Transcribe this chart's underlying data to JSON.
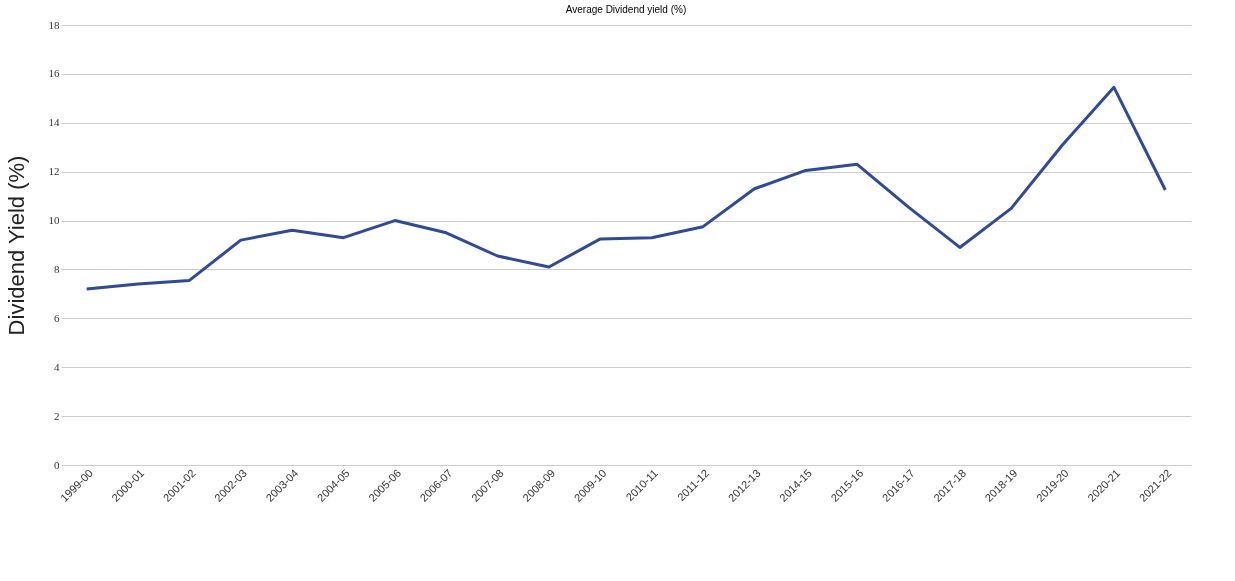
{
  "chart_data": {
    "type": "line",
    "title": "Average Dividend yield (%)",
    "ylabel": "Dividend Yield (%)",
    "categories": [
      "1999-00",
      "2000-01",
      "2001-02",
      "2002-03",
      "2003-04",
      "2004-05",
      "2005-06",
      "2006-07",
      "2007-08",
      "2008-09",
      "2009-10",
      "2010-11",
      "2011-12",
      "2012-13",
      "2014-15",
      "2015-16",
      "2016-17",
      "2017-18",
      "2018-19",
      "2019-20",
      "2020-21",
      "2021-22"
    ],
    "series": [
      {
        "color": "#2e4a98",
        "values": [
          7.2,
          7.4,
          7.55,
          9.2,
          9.6,
          9.3,
          10.0,
          9.5,
          8.55,
          8.1,
          9.25,
          9.3,
          9.75,
          11.3,
          12.05,
          12.3,
          10.55,
          8.9,
          10.5,
          13.1,
          15.45,
          11.25
        ]
      }
    ],
    "ylim": [
      0,
      18
    ],
    "yticks": [
      0,
      2,
      4,
      6,
      8,
      10,
      12,
      14,
      16,
      18
    ],
    "grid": "y",
    "marker": "none",
    "line_style": "solid"
  }
}
